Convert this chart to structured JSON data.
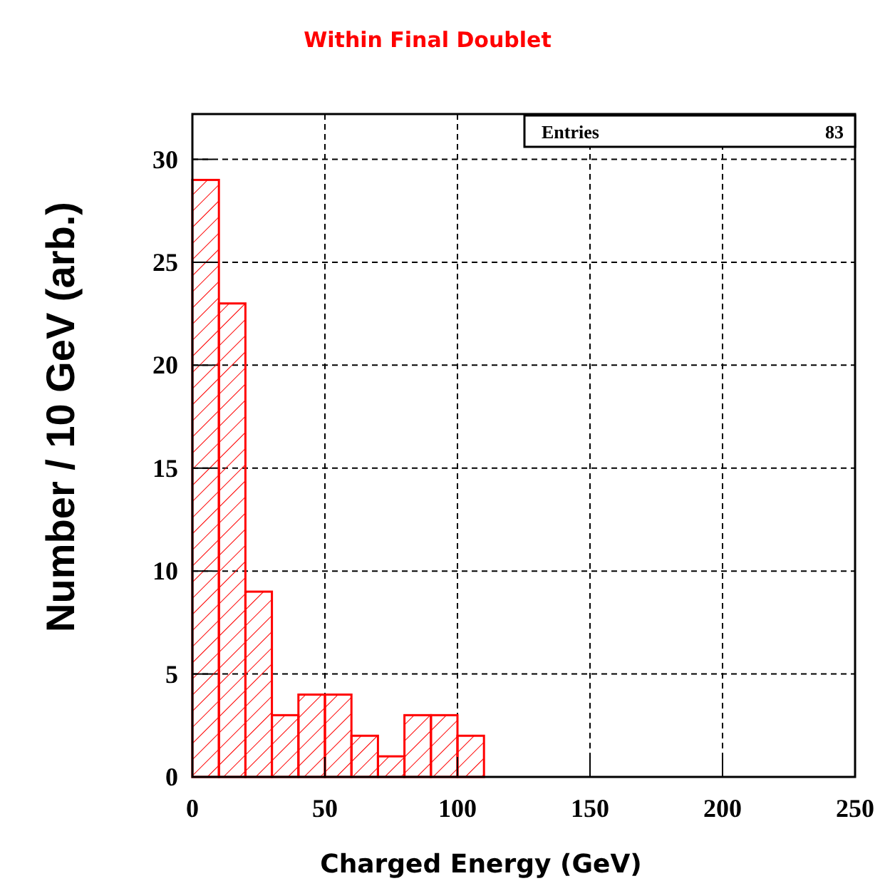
{
  "chart_data": {
    "type": "histogram",
    "title": "Within Final Doublet",
    "xlabel": "Charged Energy (GeV)",
    "ylabel": "Number / 10 GeV (arb.)",
    "bins": [
      0,
      10,
      20,
      30,
      40,
      50,
      60,
      70,
      80,
      90,
      100,
      110
    ],
    "values": [
      29,
      23,
      9,
      3,
      4,
      4,
      2,
      1,
      3,
      3,
      2
    ],
    "color": "#ff0000",
    "xlim": [
      0,
      250
    ],
    "xticks": [
      0,
      50,
      100,
      150,
      200,
      250
    ],
    "ylim": [
      0,
      32.2
    ],
    "yticks": [
      0,
      5,
      10,
      15,
      20,
      25,
      30
    ],
    "grid": true,
    "annotations": [
      "Entries",
      "83"
    ]
  }
}
